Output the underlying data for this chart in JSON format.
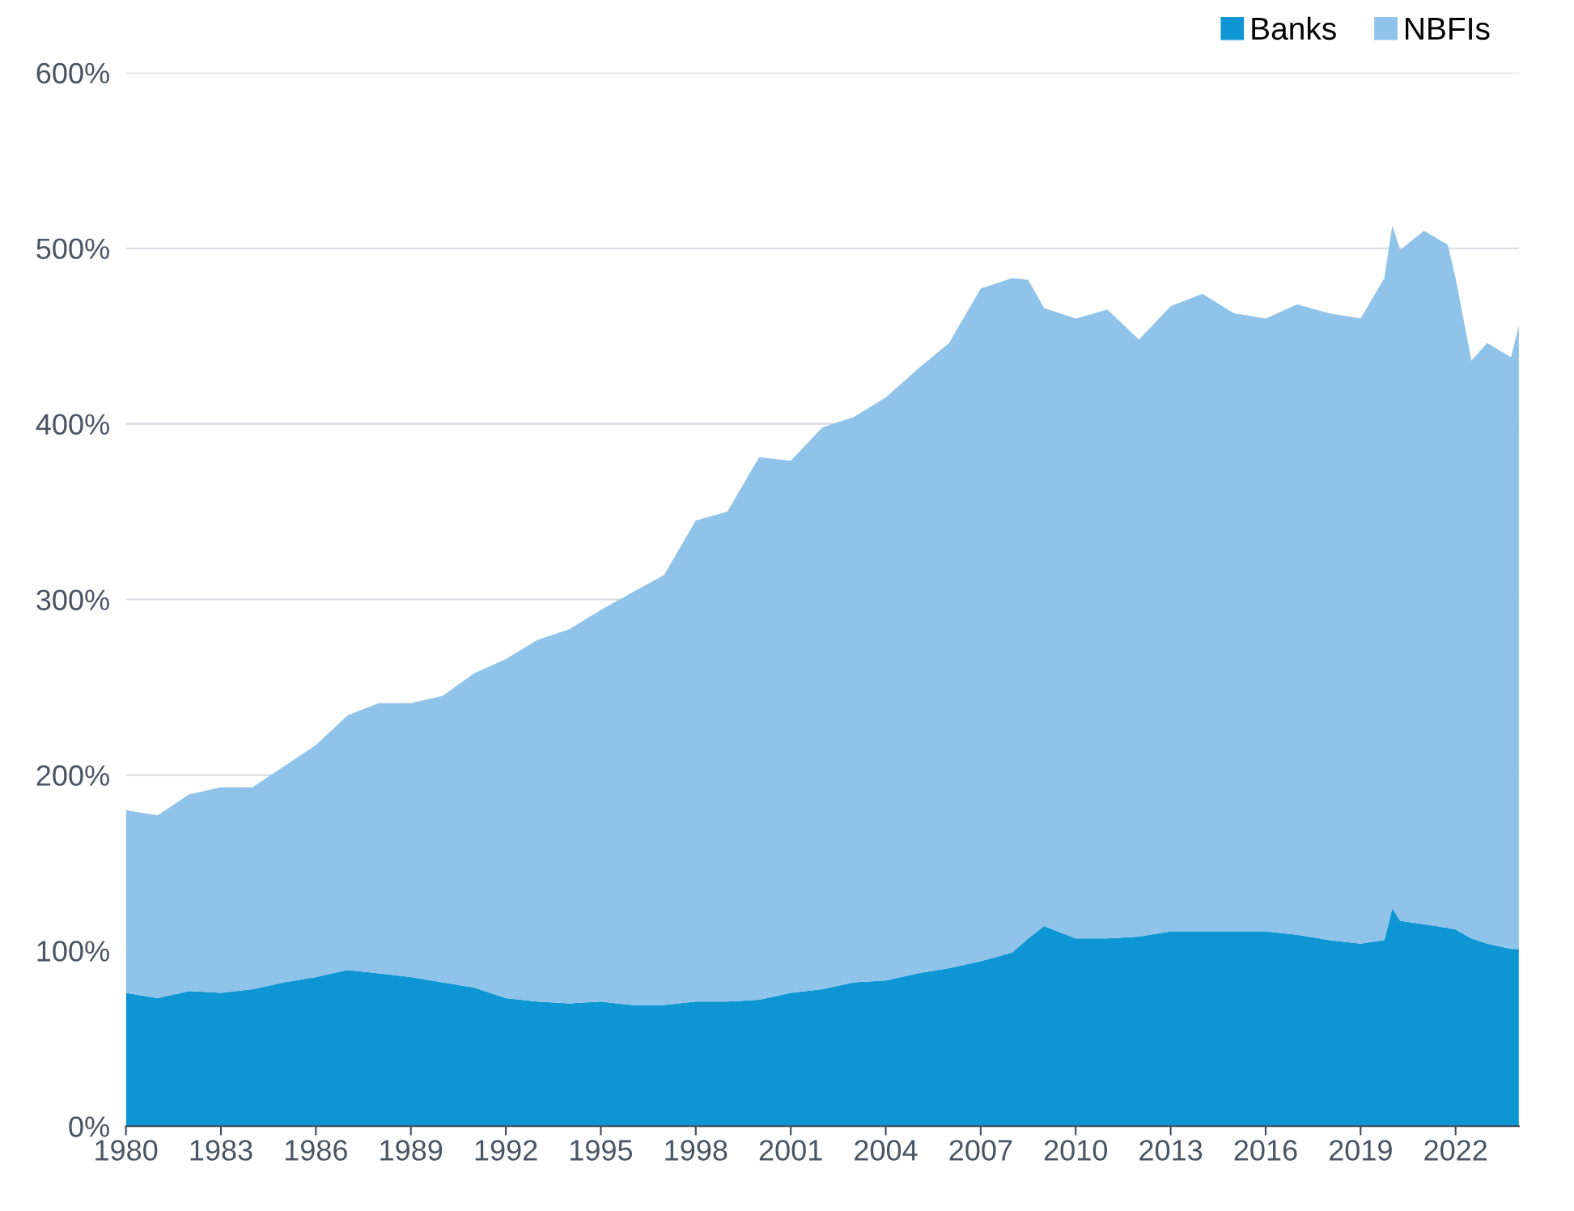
{
  "chart_data": {
    "type": "area",
    "stacked": true,
    "x": [
      1980,
      1981,
      1982,
      1983,
      1984,
      1985,
      1986,
      1987,
      1988,
      1989,
      1990,
      1991,
      1992,
      1993,
      1994,
      1995,
      1996,
      1997,
      1998,
      1999,
      2000,
      2001,
      2002,
      2003,
      2004,
      2005,
      2006,
      2007,
      2008,
      2008.5,
      2009,
      2010,
      2011,
      2012,
      2013,
      2014,
      2015,
      2016,
      2017,
      2018,
      2019,
      2019.75,
      2020,
      2020.25,
      2021,
      2021.75,
      2022,
      2022.5,
      2023,
      2023.75,
      2024
    ],
    "series": [
      {
        "name": "Banks",
        "color": "#0e96d4",
        "values": [
          76,
          73,
          77,
          76,
          78,
          82,
          85,
          89,
          87,
          85,
          82,
          79,
          73,
          71,
          70,
          71,
          69,
          69,
          71,
          71,
          72,
          76,
          78,
          82,
          83,
          87,
          90,
          94,
          99,
          107,
          114,
          107,
          107,
          108,
          111,
          111,
          111,
          111,
          109,
          106,
          104,
          106,
          124,
          117,
          115,
          113,
          112,
          107,
          104,
          101,
          101
        ]
      },
      {
        "name": "NBFIs",
        "color": "#90c3e9",
        "values": [
          104,
          104,
          112,
          117,
          115,
          123,
          132,
          145,
          154,
          156,
          163,
          179,
          193,
          206,
          213,
          223,
          235,
          245,
          274,
          279,
          309,
          303,
          320,
          322,
          332,
          344,
          356,
          383,
          384,
          375,
          352,
          353,
          358,
          340,
          356,
          363,
          352,
          349,
          359,
          357,
          356,
          377,
          389,
          382,
          395,
          389,
          371,
          329,
          342,
          337,
          355
        ]
      }
    ],
    "xlim": [
      1980,
      2024
    ],
    "xticks": [
      1980,
      1983,
      1986,
      1989,
      1992,
      1995,
      1998,
      2001,
      2004,
      2007,
      2010,
      2013,
      2016,
      2019,
      2022
    ],
    "ylim": [
      0,
      600
    ],
    "yticks": [
      {
        "value": 0,
        "label": "0%"
      },
      {
        "value": 100,
        "label": "100%"
      },
      {
        "value": 200,
        "label": "200%"
      },
      {
        "value": 300,
        "label": "300%"
      },
      {
        "value": 400,
        "label": "400%"
      },
      {
        "value": 500,
        "label": "500%"
      },
      {
        "value": 600,
        "label": "600%"
      }
    ],
    "grid": "y",
    "legend": "top right"
  }
}
